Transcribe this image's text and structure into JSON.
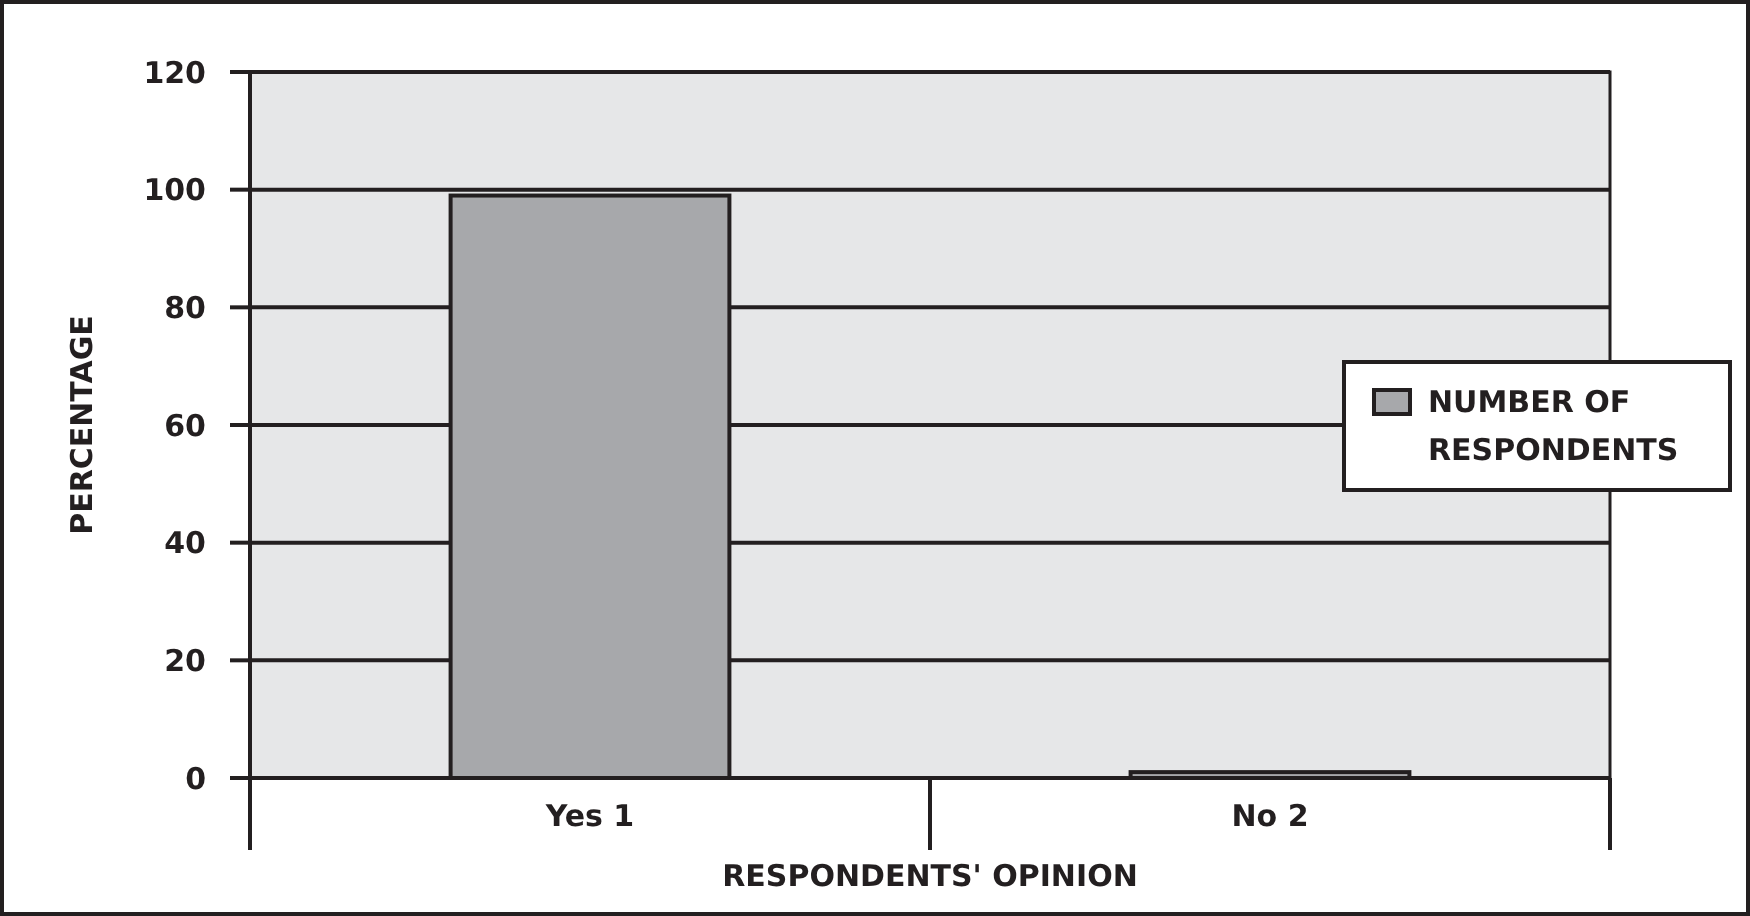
{
  "chart_data": {
    "type": "bar",
    "xlabel": "RESPONDENTS' OPINION",
    "ylabel": "PERCENTAGE",
    "categories": [
      "Yes 1",
      "No 2"
    ],
    "series": [
      {
        "name": "NUMBER OF RESPONDENTS",
        "color": "#a7a8ab",
        "values": [
          99,
          1
        ]
      }
    ],
    "ylim": [
      0,
      120
    ],
    "yticks": [
      0,
      20,
      40,
      60,
      80,
      100,
      120
    ],
    "grid": "y",
    "legend": "right"
  }
}
